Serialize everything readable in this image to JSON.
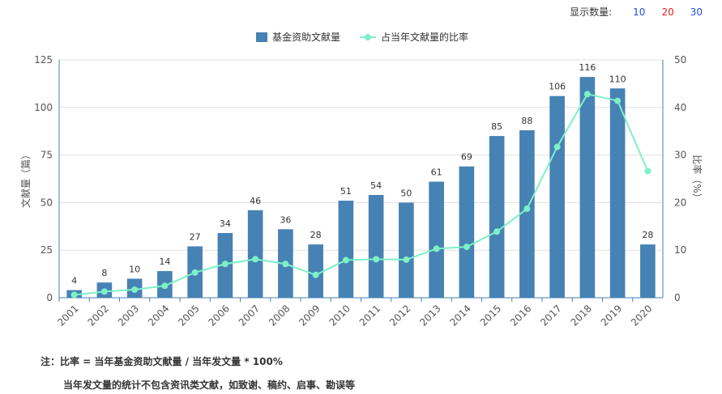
{
  "display_count": {
    "label": "显示数量:",
    "options": [
      {
        "label": "10",
        "color": "#1f4fd6"
      },
      {
        "label": "20",
        "color": "#e0201c"
      },
      {
        "label": "30",
        "color": "#1f4fd6"
      }
    ]
  },
  "notes": {
    "line1": "注：比率 = 当年基金资助文献量 / 当年发文量 * 100%",
    "line2": "当年发文量的统计不包含资讯类文献，如致谢、稿约、启事、勘误等"
  },
  "chart_data": {
    "type": "bar",
    "categories": [
      "2001",
      "2002",
      "2003",
      "2004",
      "2005",
      "2006",
      "2007",
      "2008",
      "2009",
      "2010",
      "2011",
      "2012",
      "2013",
      "2014",
      "2015",
      "2016",
      "2017",
      "2018",
      "2019",
      "2020"
    ],
    "series": [
      {
        "name": "基金资助文献量",
        "type": "bar",
        "axis": "left",
        "color": "#4682b4",
        "values": [
          4,
          8,
          10,
          14,
          27,
          34,
          46,
          36,
          28,
          51,
          54,
          50,
          61,
          69,
          85,
          88,
          106,
          116,
          110,
          28
        ]
      },
      {
        "name": "占当年文献量的比率",
        "type": "line",
        "axis": "right",
        "color": "#7ef0c6",
        "values": [
          0.6,
          1.3,
          1.7,
          2.5,
          5.3,
          7.1,
          8.1,
          7.1,
          4.8,
          7.9,
          8.1,
          8.0,
          10.3,
          10.7,
          13.9,
          18.7,
          31.7,
          42.8,
          41.4,
          26.6
        ]
      }
    ],
    "ylabel": "文献量（篇）",
    "y2label": "比率（%）",
    "ylim": [
      0,
      125
    ],
    "y2lim": [
      0,
      50
    ],
    "yticks": [
      0,
      25,
      50,
      75,
      100,
      125
    ],
    "y2ticks": [
      0,
      10,
      20,
      30,
      40,
      50
    ],
    "grid": true,
    "legend_position": "top-center"
  }
}
